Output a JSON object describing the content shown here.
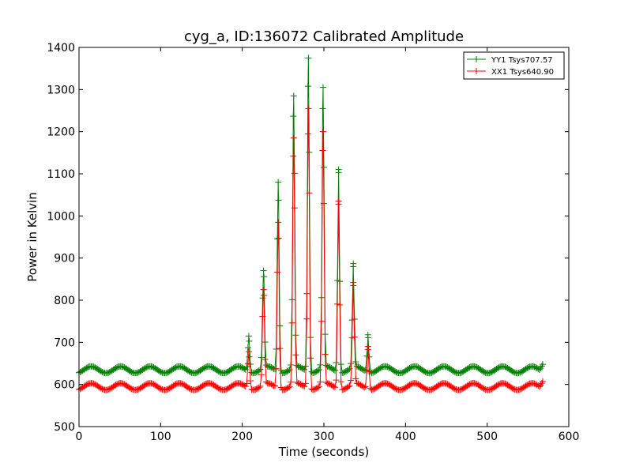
{
  "chart_data": {
    "type": "line",
    "title": "cyg_a, ID:136072 Calibrated Amplitude",
    "xlabel": "Time (seconds)",
    "ylabel": "Power in Kelvin",
    "xlim": [
      0,
      600
    ],
    "ylim": [
      500,
      1400
    ],
    "xticks": [
      "0",
      "100",
      "200",
      "300",
      "400",
      "500",
      "600"
    ],
    "yticks": [
      "500",
      "600",
      "700",
      "800",
      "900",
      "1000",
      "1100",
      "1200",
      "1300",
      "1400"
    ],
    "grid": false,
    "legend_position": "top-right",
    "marker": "+",
    "series": [
      {
        "name": "YY1 Tsys707.57",
        "color": "#008000",
        "baseline": 635,
        "ripple_amplitude": 8,
        "ripple_period_seconds": 36,
        "peaks": [
          {
            "x": 208,
            "y": 715
          },
          {
            "x": 226,
            "y": 870
          },
          {
            "x": 244,
            "y": 1080
          },
          {
            "x": 263,
            "y": 1285
          },
          {
            "x": 281,
            "y": 1375
          },
          {
            "x": 299,
            "y": 1305
          },
          {
            "x": 318,
            "y": 1110
          },
          {
            "x": 336,
            "y": 880
          },
          {
            "x": 354,
            "y": 718
          }
        ],
        "end": {
          "x": 568,
          "y": 648
        }
      },
      {
        "name": "XX1 Tsys640.90",
        "color": "#ff0000",
        "baseline": 595,
        "ripple_amplitude": 8,
        "ripple_period_seconds": 36,
        "peaks": [
          {
            "x": 208,
            "y": 678
          },
          {
            "x": 226,
            "y": 825
          },
          {
            "x": 244,
            "y": 985
          },
          {
            "x": 263,
            "y": 1185
          },
          {
            "x": 281,
            "y": 1255
          },
          {
            "x": 299,
            "y": 1200
          },
          {
            "x": 318,
            "y": 1035
          },
          {
            "x": 336,
            "y": 835
          },
          {
            "x": 354,
            "y": 690
          }
        ],
        "end": {
          "x": 568,
          "y": 607
        }
      }
    ]
  }
}
